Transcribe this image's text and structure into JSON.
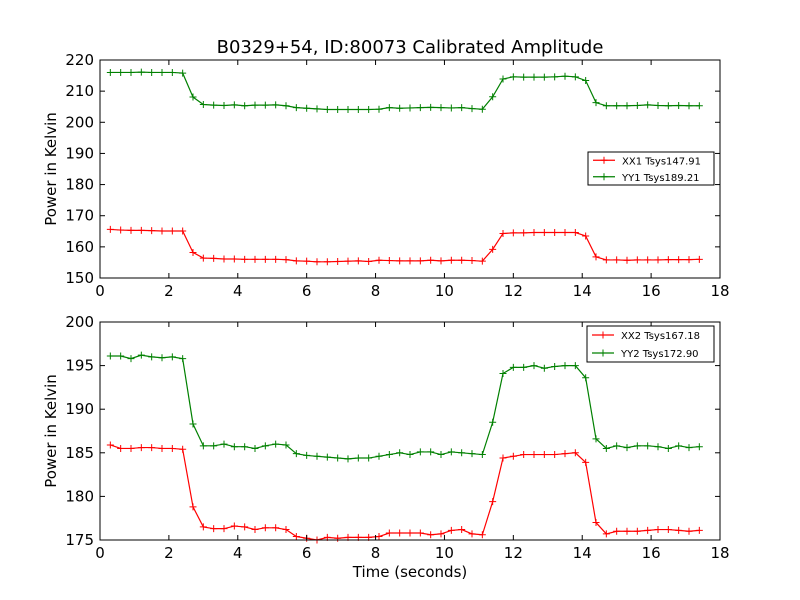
{
  "chart_data": [
    {
      "type": "line",
      "title": "B0329+54, ID:80073 Calibrated Amplitude",
      "xlabel": "",
      "ylabel": "Power in Kelvin",
      "xlim": [
        0,
        18
      ],
      "ylim": [
        150,
        220
      ],
      "xticks": [
        0,
        2,
        4,
        6,
        8,
        10,
        12,
        14,
        16,
        18
      ],
      "yticks": [
        150,
        160,
        170,
        180,
        190,
        200,
        210,
        220
      ],
      "legend_position": "right",
      "x": [
        0.3,
        0.6,
        0.9,
        1.2,
        1.5,
        1.8,
        2.1,
        2.4,
        2.7,
        3.0,
        3.3,
        3.6,
        3.9,
        4.2,
        4.5,
        4.8,
        5.1,
        5.4,
        5.7,
        6.0,
        6.3,
        6.6,
        6.9,
        7.2,
        7.5,
        7.8,
        8.1,
        8.4,
        8.7,
        9.0,
        9.3,
        9.6,
        9.9,
        10.2,
        10.5,
        10.8,
        11.1,
        11.4,
        11.7,
        12.0,
        12.3,
        12.6,
        12.9,
        13.2,
        13.5,
        13.8,
        14.1,
        14.4,
        14.7,
        15.0,
        15.3,
        15.6,
        15.9,
        16.2,
        16.5,
        16.8,
        17.1,
        17.4
      ],
      "series": [
        {
          "name": "XX1 Tsys147.91",
          "color": "#ff0000",
          "values": [
            165.6,
            165.4,
            165.3,
            165.3,
            165.2,
            165.1,
            165.1,
            165.1,
            158.2,
            156.4,
            156.3,
            156.1,
            156.1,
            156.0,
            156.0,
            156.0,
            156.0,
            155.9,
            155.5,
            155.4,
            155.2,
            155.2,
            155.3,
            155.4,
            155.5,
            155.3,
            155.7,
            155.6,
            155.5,
            155.5,
            155.5,
            155.7,
            155.5,
            155.7,
            155.7,
            155.6,
            155.4,
            159.2,
            164.3,
            164.5,
            164.5,
            164.6,
            164.6,
            164.6,
            164.6,
            164.6,
            163.5,
            156.8,
            155.8,
            155.8,
            155.7,
            155.8,
            155.8,
            155.8,
            155.9,
            155.9,
            155.9,
            156.0
          ]
        },
        {
          "name": "YY1 Tsys189.21",
          "color": "#008000",
          "values": [
            216.0,
            216.0,
            216.0,
            216.1,
            216.0,
            216.0,
            216.0,
            215.8,
            208.1,
            205.7,
            205.5,
            205.4,
            205.6,
            205.3,
            205.5,
            205.5,
            205.6,
            205.3,
            204.7,
            204.5,
            204.3,
            204.1,
            204.1,
            204.1,
            204.1,
            204.1,
            204.2,
            204.7,
            204.5,
            204.6,
            204.7,
            204.8,
            204.7,
            204.6,
            204.7,
            204.4,
            204.2,
            208.2,
            213.9,
            214.6,
            214.5,
            214.5,
            214.5,
            214.6,
            214.8,
            214.6,
            213.4,
            206.3,
            205.3,
            205.3,
            205.3,
            205.4,
            205.6,
            205.4,
            205.3,
            205.4,
            205.3,
            205.3
          ]
        }
      ]
    },
    {
      "type": "line",
      "title": "",
      "xlabel": "Time (seconds)",
      "ylabel": "Power in Kelvin",
      "xlim": [
        0,
        18
      ],
      "ylim": [
        175,
        200
      ],
      "xticks": [
        0,
        2,
        4,
        6,
        8,
        10,
        12,
        14,
        16,
        18
      ],
      "yticks": [
        175,
        180,
        185,
        190,
        195,
        200
      ],
      "legend_position": "top-right",
      "x": [
        0.3,
        0.6,
        0.9,
        1.2,
        1.5,
        1.8,
        2.1,
        2.4,
        2.7,
        3.0,
        3.3,
        3.6,
        3.9,
        4.2,
        4.5,
        4.8,
        5.1,
        5.4,
        5.7,
        6.0,
        6.3,
        6.6,
        6.9,
        7.2,
        7.5,
        7.8,
        8.1,
        8.4,
        8.7,
        9.0,
        9.3,
        9.6,
        9.9,
        10.2,
        10.5,
        10.8,
        11.1,
        11.4,
        11.7,
        12.0,
        12.3,
        12.6,
        12.9,
        13.2,
        13.5,
        13.8,
        14.1,
        14.4,
        14.7,
        15.0,
        15.3,
        15.6,
        15.9,
        16.2,
        16.5,
        16.8,
        17.1,
        17.4
      ],
      "series": [
        {
          "name": "XX2 Tsys167.18",
          "color": "#ff0000",
          "values": [
            185.9,
            185.5,
            185.5,
            185.6,
            185.6,
            185.5,
            185.5,
            185.4,
            178.8,
            176.5,
            176.3,
            176.3,
            176.6,
            176.5,
            176.2,
            176.4,
            176.4,
            176.2,
            175.4,
            175.2,
            175.0,
            175.3,
            175.2,
            175.3,
            175.3,
            175.3,
            175.4,
            175.8,
            175.8,
            175.8,
            175.8,
            175.6,
            175.7,
            176.1,
            176.2,
            175.7,
            175.6,
            179.4,
            184.4,
            184.6,
            184.8,
            184.8,
            184.8,
            184.8,
            184.9,
            185.0,
            183.9,
            177.0,
            175.7,
            176.0,
            176.0,
            176.0,
            176.1,
            176.2,
            176.2,
            176.1,
            176.0,
            176.1
          ]
        },
        {
          "name": "YY2 Tsys172.90",
          "color": "#008000",
          "values": [
            196.1,
            196.1,
            195.8,
            196.2,
            196.0,
            195.9,
            196.0,
            195.8,
            188.3,
            185.8,
            185.8,
            186.0,
            185.7,
            185.7,
            185.5,
            185.8,
            186.0,
            185.9,
            184.9,
            184.7,
            184.6,
            184.5,
            184.4,
            184.3,
            184.4,
            184.4,
            184.6,
            184.8,
            185.0,
            184.8,
            185.1,
            185.1,
            184.8,
            185.1,
            185.0,
            184.9,
            184.8,
            188.5,
            194.1,
            194.8,
            194.8,
            195.0,
            194.7,
            194.9,
            195.0,
            195.0,
            193.6,
            186.6,
            185.5,
            185.8,
            185.6,
            185.8,
            185.8,
            185.7,
            185.5,
            185.8,
            185.6,
            185.7
          ]
        }
      ]
    }
  ]
}
